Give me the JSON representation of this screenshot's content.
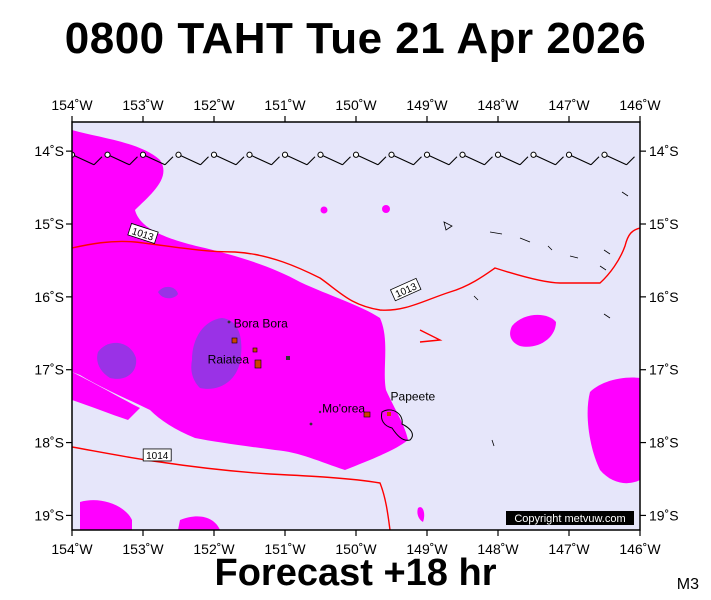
{
  "title": "0800 TAHT Tue 21 Apr 2026",
  "footer": "Forecast +18 hr",
  "model_label": "M3",
  "copyright": "Copyright metvuw.com",
  "map": {
    "lon_range": [
      -154,
      -146
    ],
    "lat_range": [
      -19.2,
      -13.6
    ],
    "lon_ticks": [
      {
        "lon": -154,
        "label": "154˚W"
      },
      {
        "lon": -153,
        "label": "153˚W"
      },
      {
        "lon": -152,
        "label": "152˚W"
      },
      {
        "lon": -151,
        "label": "151˚W"
      },
      {
        "lon": -150,
        "label": "150˚W"
      },
      {
        "lon": -149,
        "label": "149˚W"
      },
      {
        "lon": -148,
        "label": "148˚W"
      },
      {
        "lon": -147,
        "label": "147˚W"
      },
      {
        "lon": -146,
        "label": "146˚W"
      }
    ],
    "lat_ticks": [
      {
        "lat": -14,
        "label": "14˚S"
      },
      {
        "lat": -15,
        "label": "15˚S"
      },
      {
        "lat": -16,
        "label": "16˚S"
      },
      {
        "lat": -17,
        "label": "17˚S"
      },
      {
        "lat": -18,
        "label": "18˚S"
      },
      {
        "lat": -19,
        "label": "19˚S"
      }
    ],
    "places": [
      {
        "name": "Bora Bora",
        "lon": -151.75,
        "lat": -16.5
      },
      {
        "name": "Raiatea",
        "lon": -151.45,
        "lat": -16.83
      },
      {
        "name": "Mo'orea",
        "lon": -149.83,
        "lat": -17.53
      },
      {
        "name": "Papeete",
        "lon": -149.57,
        "lat": -17.53
      }
    ],
    "isobars": [
      {
        "label": "1013",
        "label_lon": -153.0,
        "label_lat": -15.13
      },
      {
        "label": "1013",
        "label_lon": -149.3,
        "label_lat": -15.9
      },
      {
        "label": "1014",
        "label_lon": -152.8,
        "label_lat": -18.17
      }
    ],
    "colors": {
      "ocean": "#e6e6fa",
      "precip_light": "#ff00ff",
      "precip_heavy": "#9a32e6",
      "isobar": "#ff0000",
      "wind": "#000000"
    }
  }
}
